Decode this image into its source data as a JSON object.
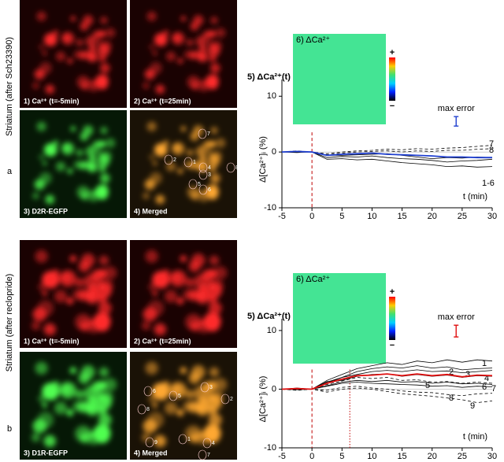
{
  "panels": [
    {
      "letter": "a",
      "side_label": "Striatum (after Sch23390)",
      "images": [
        "1) Ca²⁺ (t=-5min)",
        "2) Ca²⁺ (t=25min)",
        "3) D2R-EGFP",
        "4) Merged"
      ],
      "cell_labels": [
        "7",
        "2",
        "1",
        "4",
        "3",
        "5",
        "6",
        "8"
      ]
    },
    {
      "letter": "b",
      "side_label": "Striatum (after reclopride)",
      "images": [
        "1) Ca²⁺ (t=-5min)",
        "2) Ca²⁺ (t=25min)",
        "3) D1R-EGFP",
        "4) Merged"
      ],
      "cell_labels": [
        "6",
        "5",
        "3",
        "2",
        "8",
        "9",
        "1",
        "4",
        "7"
      ]
    }
  ],
  "chart_data": [
    {
      "type": "line",
      "title": "5) ΔCa²⁺(t)",
      "inset_label": "6) ΔCa²⁺",
      "colorbar_labels": [
        "+",
        "−"
      ],
      "x_label": "t (min)",
      "y_label": "Δ[Ca²⁺]ᵢ (%)",
      "x": [
        -5,
        -2.5,
        0,
        2.5,
        5,
        7.5,
        10,
        12.5,
        15,
        17.5,
        20,
        22.5,
        25,
        27.5,
        30
      ],
      "xlim": [
        -5,
        30
      ],
      "xticks": [
        -5,
        0,
        5,
        10,
        15,
        20,
        25,
        30
      ],
      "ylim": [
        -10,
        13
      ],
      "yticks": [
        -10,
        0,
        10
      ],
      "vlines": [
        {
          "x": 0,
          "color": "#c00000",
          "line_style": "dashed"
        }
      ],
      "max_error": {
        "label": "max error",
        "x": 24,
        "y": 5.5,
        "error": 0.85,
        "color": "#1f3fd0"
      },
      "series": [
        {
          "name": "7",
          "color": "#000000",
          "line_style": "dashed",
          "values": [
            0,
            0.2,
            0,
            -0.3,
            0,
            0.2,
            0.3,
            0.5,
            0.4,
            0.6,
            0.5,
            0.7,
            0.8,
            1.0,
            1.2
          ]
        },
        {
          "name": "8",
          "color": "#000000",
          "line_style": "dashed",
          "values": [
            0,
            0.1,
            0,
            -0.5,
            -0.2,
            0,
            0.1,
            0.2,
            0,
            0.2,
            0.1,
            0.3,
            0.3,
            0.5,
            0.6
          ]
        },
        {
          "name": "1-6",
          "color": "#000000",
          "line_style": "solid",
          "values": [
            0,
            0,
            0,
            -1,
            -0.8,
            -0.9,
            -0.7,
            -1,
            -1.2,
            -1.3,
            -1.5,
            -1.8,
            -1.6,
            -1.5,
            -1.3
          ]
        },
        {
          "color": "#000000",
          "line_style": "solid",
          "values": [
            0,
            0.1,
            0,
            -1.3,
            -1.2,
            -1.4,
            -1.3,
            -1.6,
            -1.9,
            -2.1,
            -2.3,
            -2.6,
            -2.5,
            -2.7,
            -2.6
          ]
        },
        {
          "color": "#000000",
          "line_style": "solid",
          "values": [
            0,
            -0.1,
            0,
            -0.6,
            -0.6,
            -0.5,
            -0.4,
            -0.3,
            -0.6,
            -0.9,
            -1.2,
            -1.0,
            -1.1,
            -0.9,
            -1.0
          ]
        },
        {
          "color": "#1f3fd0",
          "line_style": "solid",
          "values": [
            0,
            0.1,
            0,
            -0.6,
            -0.4,
            -0.3,
            -0.2,
            -0.4,
            -0.5,
            -0.6,
            -0.7,
            -0.9,
            -0.9,
            -1.0,
            -1.0
          ]
        }
      ]
    },
    {
      "type": "line",
      "title": "5) ΔCa²⁺(t)",
      "inset_label": "6) ΔCa²⁺",
      "colorbar_labels": [
        "+",
        "−"
      ],
      "x_label": "t (min)",
      "y_label": "Δ[Ca²⁺]ᵢ (%)",
      "x": [
        -5,
        -2.5,
        0,
        2.5,
        5,
        7.5,
        10,
        12.5,
        15,
        17.5,
        20,
        22.5,
        25,
        27.5,
        30
      ],
      "xlim": [
        -5,
        30
      ],
      "xticks": [
        -5,
        0,
        5,
        10,
        15,
        20,
        25,
        30
      ],
      "ylim": [
        -10,
        12
      ],
      "yticks": [
        -10,
        0,
        10
      ],
      "vlines": [
        {
          "x": 0,
          "color": "#c00000",
          "line_style": "dashed"
        },
        {
          "x": 6.3,
          "color": "#c00000",
          "line_style": "dotted"
        }
      ],
      "max_error": {
        "label": "max error",
        "x": 24,
        "y": 9.9,
        "error": 1,
        "color": "#e01010"
      },
      "series": [
        {
          "name": "1",
          "color": "#000000",
          "line_style": "solid",
          "values": [
            0,
            0.2,
            0,
            1.5,
            2.5,
            3.5,
            4,
            4.5,
            4.2,
            4.8,
            4.5,
            5,
            4.6,
            5,
            4.8
          ]
        },
        {
          "name": "2",
          "color": "#000000",
          "line_style": "solid",
          "values": [
            0,
            0.1,
            0,
            1.2,
            2,
            3,
            3.5,
            3.8,
            3.6,
            4,
            3.6,
            3.8,
            3.3,
            3.5,
            3.6
          ]
        },
        {
          "name": "3",
          "color": "#000000",
          "line_style": "solid",
          "values": [
            0,
            -0.1,
            0,
            1,
            2,
            2.5,
            3,
            3.2,
            3,
            3.3,
            3,
            3.1,
            2.8,
            3,
            3.2
          ]
        },
        {
          "name": "4",
          "color": "#000000",
          "line_style": "solid",
          "values": [
            0,
            0,
            0,
            1.3,
            1.5,
            2.2,
            2.5,
            2.6,
            2.2,
            2.5,
            2.2,
            2.4,
            2.0,
            2.3,
            2.2
          ]
        },
        {
          "name": "5",
          "color": "#000000",
          "line_style": "dashed",
          "values": [
            0,
            0.1,
            0,
            0.8,
            1.4,
            2,
            1.8,
            2,
            1.5,
            1.6,
            1.2,
            1.3,
            1,
            1.2,
            1
          ]
        },
        {
          "name": "6",
          "color": "#000000",
          "line_style": "solid",
          "values": [
            0,
            0,
            0,
            0.6,
            1.2,
            1.5,
            1.3,
            1.5,
            1.2,
            1.3,
            1,
            1.2,
            0.9,
            1,
            0.8
          ]
        },
        {
          "name": "7",
          "color": "#000000",
          "line_style": "solid",
          "values": [
            0,
            0.1,
            0,
            0.5,
            1,
            1.2,
            1,
            0.9,
            0.8,
            0.7,
            0.5,
            0.6,
            0.3,
            0.5,
            0.4
          ]
        },
        {
          "name": "8",
          "color": "#000000",
          "line_style": "dashed",
          "values": [
            0,
            -0.2,
            0,
            -0.2,
            0.3,
            0.5,
            0.2,
            0,
            -0.3,
            -0.5,
            -0.6,
            -0.9,
            -1.1,
            -0.8,
            -0.7
          ]
        },
        {
          "name": "9",
          "color": "#000000",
          "line_style": "dashed",
          "values": [
            0,
            -0.1,
            0,
            -0.5,
            0,
            0.2,
            0,
            -0.4,
            -0.8,
            -1,
            -1.2,
            -1.5,
            -1.8,
            -2.3,
            -2
          ]
        },
        {
          "color": "#e01010",
          "line_style": "solid",
          "values": [
            0,
            0.1,
            0,
            1,
            1.7,
            2.3,
            2.4,
            2.6,
            2.3,
            2.6,
            2.3,
            2.5,
            2.1,
            2.4,
            2.3
          ]
        }
      ]
    }
  ]
}
